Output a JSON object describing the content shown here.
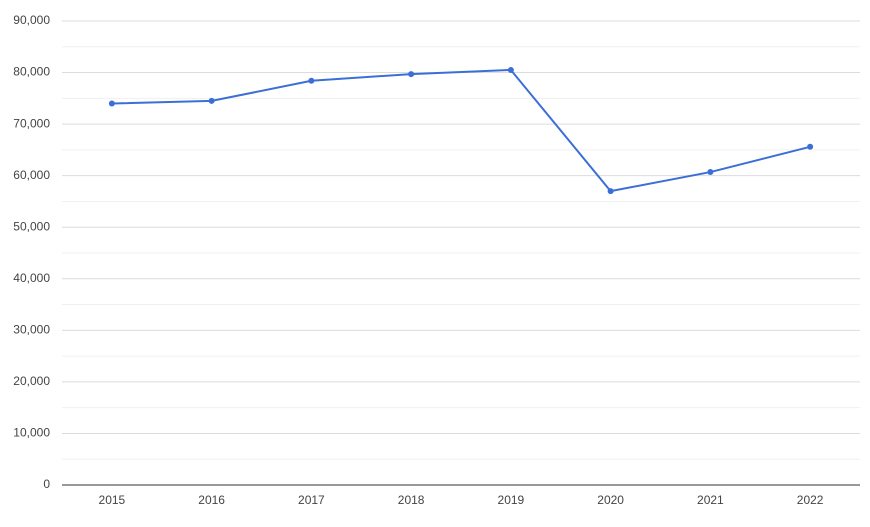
{
  "chart_data": {
    "type": "line",
    "categories": [
      "2015",
      "2016",
      "2017",
      "2018",
      "2019",
      "2020",
      "2021",
      "2022"
    ],
    "series": [
      {
        "color": "#3c6fd6",
        "values": [
          74000,
          74500,
          78400,
          79700,
          80500,
          57000,
          60700,
          65600
        ]
      }
    ],
    "ylim": [
      0,
      90000
    ],
    "yticks": [
      0,
      {
        "value": 10000,
        "label": "10,000"
      },
      {
        "value": 20000,
        "label": "20,000"
      },
      {
        "value": 30000,
        "label": "30,000"
      },
      {
        "value": 40000,
        "label": "40,000"
      },
      {
        "value": 50000,
        "label": "50,000"
      },
      {
        "value": 60000,
        "label": "60,000"
      },
      {
        "value": 70000,
        "label": "70,000"
      },
      {
        "value": 80000,
        "label": "80,000"
      },
      {
        "value": 90000,
        "label": "90,000"
      }
    ],
    "grid": true
  }
}
